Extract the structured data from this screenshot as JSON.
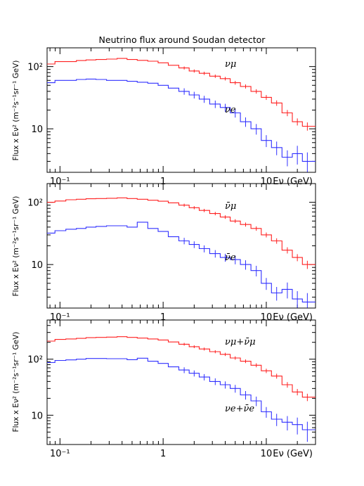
{
  "title": "Neutrino flux around Soudan detector",
  "ylabel": "Flux x Eν² (m⁻²s⁻¹sr⁻¹ GeV)",
  "xlabel": "Eν (GeV)",
  "colors": {
    "red": "#ff2020",
    "blue": "#3030ff",
    "axis": "#000000"
  },
  "chart_data": [
    {
      "type": "line",
      "title": "Neutrino flux around Soudan detector",
      "xlabel": "Eν (GeV)",
      "ylabel": "Flux x Eν² (m⁻²s⁻¹sr⁻¹ GeV)",
      "xscale": "log",
      "yscale": "log",
      "xlim": [
        0.075,
        30
      ],
      "ylim": [
        2,
        200
      ],
      "x_ticks": [
        "10⁻¹",
        "1",
        "10"
      ],
      "y_ticks": [
        "10",
        "10²"
      ],
      "series": [
        {
          "name": "νμ",
          "color": "#ff2020",
          "x": [
            0.08,
            0.1,
            0.13,
            0.16,
            0.2,
            0.25,
            0.32,
            0.4,
            0.5,
            0.63,
            0.8,
            1.0,
            1.26,
            1.6,
            2.0,
            2.5,
            3.2,
            4.0,
            5.0,
            6.3,
            8.0,
            10,
            12.6,
            16,
            20,
            25
          ],
          "values": [
            110,
            120,
            120,
            125,
            128,
            130,
            132,
            135,
            130,
            126,
            122,
            115,
            105,
            95,
            85,
            78,
            70,
            64,
            55,
            48,
            40,
            32,
            26,
            18,
            13,
            11
          ]
        },
        {
          "name": "νe",
          "color": "#3030ff",
          "x": [
            0.08,
            0.1,
            0.13,
            0.16,
            0.2,
            0.25,
            0.32,
            0.4,
            0.5,
            0.63,
            0.8,
            1.0,
            1.26,
            1.6,
            2.0,
            2.5,
            3.2,
            4.0,
            5.0,
            6.3,
            8.0,
            10,
            12.6,
            16,
            20,
            25
          ],
          "values": [
            55,
            60,
            60,
            62,
            63,
            62,
            60,
            60,
            58,
            56,
            54,
            50,
            45,
            40,
            35,
            30,
            25,
            22,
            18,
            13,
            10,
            6.5,
            5,
            3.5,
            4,
            3
          ]
        }
      ],
      "annotations": [
        "νμ",
        "νe"
      ]
    },
    {
      "type": "line",
      "xlabel": "Eν (GeV)",
      "xscale": "log",
      "yscale": "log",
      "xlim": [
        0.075,
        30
      ],
      "ylim": [
        2,
        200
      ],
      "x_ticks": [
        "10⁻¹",
        "1",
        "10"
      ],
      "y_ticks": [
        "10",
        "10²"
      ],
      "series": [
        {
          "name": "ν̄μ",
          "color": "#ff2020",
          "x": [
            0.08,
            0.1,
            0.13,
            0.16,
            0.2,
            0.25,
            0.32,
            0.4,
            0.5,
            0.63,
            0.8,
            1.0,
            1.26,
            1.6,
            2.0,
            2.5,
            3.2,
            4.0,
            5.0,
            6.3,
            8.0,
            10,
            12.6,
            16,
            20,
            25
          ],
          "values": [
            100,
            105,
            110,
            112,
            114,
            115,
            116,
            118,
            115,
            112,
            108,
            104,
            98,
            90,
            82,
            74,
            66,
            58,
            50,
            44,
            38,
            30,
            24,
            17,
            13,
            10
          ]
        },
        {
          "name": "ν̄e",
          "color": "#3030ff",
          "x": [
            0.08,
            0.1,
            0.13,
            0.16,
            0.2,
            0.25,
            0.32,
            0.4,
            0.5,
            0.63,
            0.8,
            1.0,
            1.26,
            1.6,
            2.0,
            2.5,
            3.2,
            4.0,
            5.0,
            6.3,
            8.0,
            10,
            12.6,
            16,
            20,
            25
          ],
          "values": [
            32,
            35,
            37,
            38,
            40,
            41,
            42,
            42,
            40,
            48,
            38,
            34,
            28,
            24,
            21,
            18,
            15,
            13,
            12,
            10,
            8,
            5,
            3.5,
            4,
            2.8,
            2.5
          ]
        }
      ],
      "annotations": [
        "ν̄μ",
        "ν̄e"
      ]
    },
    {
      "type": "line",
      "xlabel": "Eν (GeV)",
      "xscale": "log",
      "yscale": "log",
      "xlim": [
        0.075,
        30
      ],
      "ylim": [
        3,
        500
      ],
      "x_ticks": [
        "10⁻¹",
        "1",
        "10"
      ],
      "y_ticks": [
        "10",
        "10²"
      ],
      "series": [
        {
          "name": "νμ+ν̄μ",
          "color": "#ff2020",
          "x": [
            0.08,
            0.1,
            0.13,
            0.16,
            0.2,
            0.25,
            0.32,
            0.4,
            0.5,
            0.63,
            0.8,
            1.0,
            1.26,
            1.6,
            2.0,
            2.5,
            3.2,
            4.0,
            5.0,
            6.3,
            8.0,
            10,
            12.6,
            16,
            20,
            25
          ],
          "values": [
            210,
            225,
            230,
            235,
            242,
            245,
            248,
            252,
            245,
            238,
            230,
            220,
            203,
            185,
            167,
            152,
            136,
            122,
            105,
            92,
            78,
            62,
            50,
            35,
            26,
            21
          ]
        },
        {
          "name": "νe+ν̄e",
          "color": "#3030ff",
          "x": [
            0.08,
            0.1,
            0.13,
            0.16,
            0.2,
            0.25,
            0.32,
            0.4,
            0.5,
            0.63,
            0.8,
            1.0,
            1.26,
            1.6,
            2.0,
            2.5,
            3.2,
            4.0,
            5.0,
            6.3,
            8.0,
            10,
            12.6,
            16,
            20,
            25
          ],
          "values": [
            87,
            95,
            97,
            100,
            103,
            103,
            102,
            102,
            98,
            104,
            92,
            84,
            73,
            64,
            56,
            48,
            40,
            35,
            30,
            23,
            18,
            11.5,
            8.5,
            7.5,
            6.8,
            5.5
          ]
        }
      ],
      "annotations": [
        "νμ+ν̄μ",
        "νe+ν̄e"
      ]
    }
  ]
}
